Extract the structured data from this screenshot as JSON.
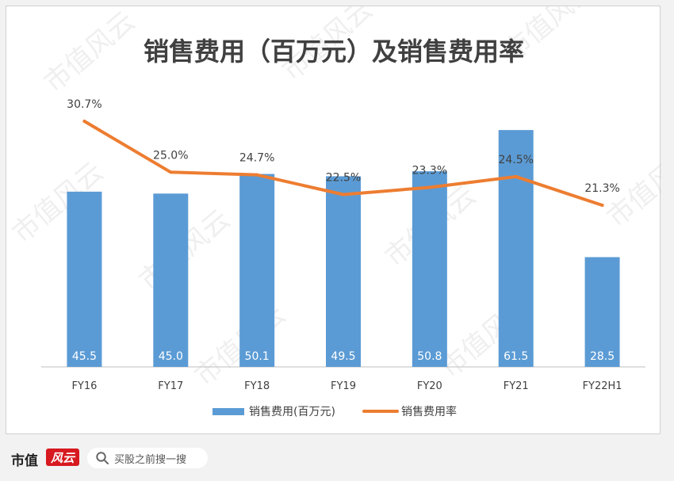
{
  "chart_data": {
    "type": "bar+line",
    "title": "销售费用（百万元）及销售费用率",
    "categories": [
      "FY16",
      "FY17",
      "FY18",
      "FY19",
      "FY20",
      "FY21",
      "FY22H1"
    ],
    "series": [
      {
        "name": "销售费用(百万元)",
        "kind": "bar",
        "color": "#5b9bd5",
        "values": [
          45.5,
          45.0,
          50.1,
          49.5,
          50.8,
          61.5,
          28.5
        ],
        "labels": [
          "45.5",
          "45.0",
          "50.1",
          "49.5",
          "50.8",
          "61.5",
          "28.5"
        ]
      },
      {
        "name": "销售费用率",
        "kind": "line",
        "color": "#ed7d31",
        "values": [
          30.7,
          25.0,
          24.7,
          22.5,
          23.3,
          24.5,
          21.3
        ],
        "labels": [
          "30.7%",
          "25.0%",
          "24.7%",
          "22.5%",
          "23.3%",
          "24.5%",
          "21.3%"
        ]
      }
    ],
    "legend_position": "bottom",
    "grid": false
  },
  "watermark": {
    "text": "市值风云"
  },
  "footer": {
    "brand": "市值",
    "brand_mark": "风云",
    "search_text": "买股之前搜一搜"
  }
}
